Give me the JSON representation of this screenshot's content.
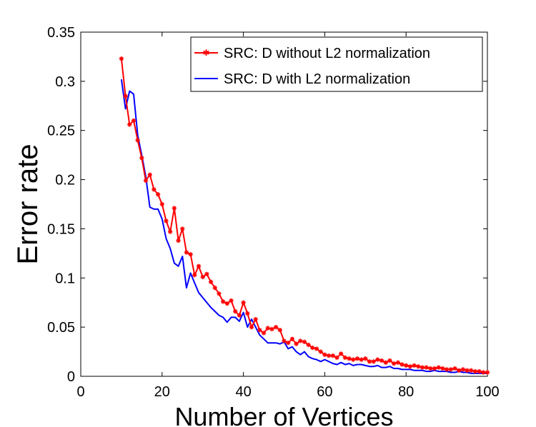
{
  "chart_data": {
    "type": "line",
    "title": "",
    "xlabel": "Number of Vertices",
    "ylabel": "Error rate",
    "xlim": [
      0,
      100
    ],
    "ylim": [
      0,
      0.35
    ],
    "xticks": [
      0,
      20,
      40,
      60,
      80,
      100
    ],
    "xtick_labels": [
      "0",
      "20",
      "40",
      "60",
      "80",
      "100"
    ],
    "yticks": [
      0,
      0.05,
      0.1,
      0.15,
      0.2,
      0.25,
      0.3,
      0.35
    ],
    "ytick_labels": [
      "0",
      "0.05",
      "0.1",
      "0.15",
      "0.2",
      "0.25",
      "0.3",
      "0.35"
    ],
    "grid": false,
    "legend_position": "top-right",
    "series": [
      {
        "name": "SRC: D without L2 normalization",
        "color": "#ff0000",
        "marker": "star",
        "x": [
          10,
          11,
          12,
          13,
          14,
          15,
          16,
          17,
          18,
          19,
          20,
          21,
          22,
          23,
          24,
          25,
          26,
          27,
          28,
          29,
          30,
          31,
          32,
          33,
          34,
          35,
          36,
          37,
          38,
          39,
          40,
          41,
          42,
          43,
          44,
          45,
          46,
          47,
          48,
          49,
          50,
          51,
          52,
          53,
          54,
          55,
          56,
          57,
          58,
          59,
          60,
          61,
          62,
          63,
          64,
          65,
          66,
          67,
          68,
          69,
          70,
          71,
          72,
          73,
          74,
          75,
          76,
          77,
          78,
          79,
          80,
          81,
          82,
          83,
          84,
          85,
          86,
          87,
          88,
          89,
          90,
          91,
          92,
          93,
          94,
          95,
          96,
          97,
          98,
          99,
          100
        ],
        "values": [
          0.323,
          0.285,
          0.256,
          0.26,
          0.24,
          0.222,
          0.199,
          0.205,
          0.19,
          0.185,
          0.175,
          0.158,
          0.147,
          0.171,
          0.138,
          0.15,
          0.126,
          0.124,
          0.103,
          0.112,
          0.101,
          0.104,
          0.096,
          0.09,
          0.084,
          0.076,
          0.074,
          0.077,
          0.066,
          0.062,
          0.075,
          0.064,
          0.05,
          0.058,
          0.047,
          0.044,
          0.049,
          0.048,
          0.05,
          0.047,
          0.036,
          0.034,
          0.038,
          0.033,
          0.036,
          0.035,
          0.032,
          0.029,
          0.028,
          0.025,
          0.022,
          0.021,
          0.021,
          0.019,
          0.023,
          0.019,
          0.018,
          0.017,
          0.018,
          0.017,
          0.018,
          0.015,
          0.015,
          0.017,
          0.016,
          0.014,
          0.016,
          0.013,
          0.014,
          0.012,
          0.011,
          0.01,
          0.011,
          0.01,
          0.009,
          0.009,
          0.008,
          0.008,
          0.009,
          0.008,
          0.007,
          0.007,
          0.008,
          0.006,
          0.007,
          0.006,
          0.006,
          0.005,
          0.005,
          0.004,
          0.004
        ]
      },
      {
        "name": "SRC: D with L2 normalization",
        "color": "#0000ff",
        "marker": "none",
        "x": [
          10,
          11,
          12,
          13,
          14,
          15,
          16,
          17,
          18,
          19,
          20,
          21,
          22,
          23,
          24,
          25,
          26,
          27,
          28,
          29,
          30,
          31,
          32,
          33,
          34,
          35,
          36,
          37,
          38,
          39,
          40,
          41,
          42,
          43,
          44,
          45,
          46,
          47,
          48,
          49,
          50,
          51,
          52,
          53,
          54,
          55,
          56,
          57,
          58,
          59,
          60,
          61,
          62,
          63,
          64,
          65,
          66,
          67,
          68,
          69,
          70,
          71,
          72,
          73,
          74,
          75,
          76,
          77,
          78,
          79,
          80,
          81,
          82,
          83,
          84,
          85,
          86,
          87,
          88,
          89,
          90,
          91,
          92,
          93,
          94,
          95,
          96,
          97,
          98,
          99,
          100
        ],
        "values": [
          0.302,
          0.272,
          0.29,
          0.287,
          0.245,
          0.225,
          0.203,
          0.172,
          0.17,
          0.17,
          0.16,
          0.14,
          0.13,
          0.115,
          0.112,
          0.122,
          0.09,
          0.105,
          0.095,
          0.085,
          0.08,
          0.075,
          0.07,
          0.066,
          0.062,
          0.06,
          0.055,
          0.06,
          0.06,
          0.056,
          0.065,
          0.05,
          0.058,
          0.05,
          0.042,
          0.038,
          0.034,
          0.034,
          0.034,
          0.033,
          0.035,
          0.028,
          0.03,
          0.025,
          0.022,
          0.025,
          0.02,
          0.018,
          0.017,
          0.015,
          0.017,
          0.015,
          0.013,
          0.012,
          0.014,
          0.012,
          0.013,
          0.011,
          0.012,
          0.012,
          0.011,
          0.01,
          0.01,
          0.011,
          0.009,
          0.009,
          0.01,
          0.008,
          0.008,
          0.007,
          0.007,
          0.007,
          0.006,
          0.006,
          0.006,
          0.005,
          0.005,
          0.006,
          0.005,
          0.005,
          0.005,
          0.004,
          0.004,
          0.005,
          0.004,
          0.004,
          0.003,
          0.003,
          0.003,
          0.003,
          0.003
        ]
      }
    ]
  }
}
